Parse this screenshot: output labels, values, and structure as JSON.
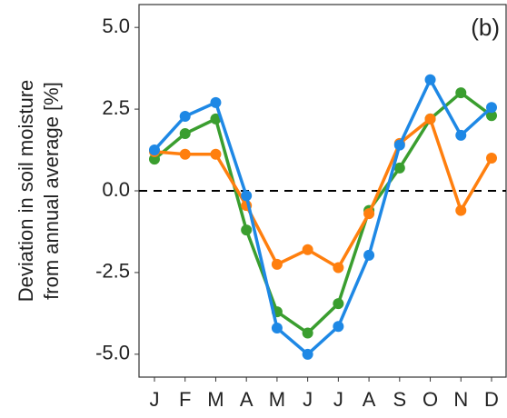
{
  "chart_data": {
    "type": "line",
    "y_label": [
      "Deviation in soil moisture",
      "from annual average [%]"
    ],
    "annotation": "(b)",
    "categories": [
      "J",
      "F",
      "M",
      "A",
      "M",
      "J",
      "J",
      "A",
      "S",
      "O",
      "N",
      "D"
    ],
    "series": [
      {
        "color": "#3a9e2f",
        "values": [
          0.97,
          1.75,
          2.2,
          -1.2,
          -3.7,
          -4.35,
          -3.45,
          -0.6,
          0.7,
          2.2,
          3.0,
          2.3
        ]
      },
      {
        "color": "#ff7f0e",
        "values": [
          1.2,
          1.12,
          1.12,
          -0.45,
          -2.25,
          -1.8,
          -2.35,
          -0.7,
          1.45,
          2.2,
          -0.6,
          1.0
        ]
      },
      {
        "color": "#1e88e5",
        "values": [
          1.25,
          2.28,
          2.7,
          -0.15,
          -4.2,
          -5.0,
          -4.15,
          -1.97,
          1.4,
          3.4,
          1.7,
          2.55
        ]
      }
    ],
    "reference_line": 0,
    "ylim": [
      -5.7,
      5.7
    ],
    "yticks": [
      {
        "value": -5,
        "label": "-5.0"
      },
      -2.5,
      {
        "value": 0,
        "label": "0.0"
      },
      2.5,
      {
        "value": 5,
        "label": "5.0"
      }
    ],
    "grid": false
  }
}
